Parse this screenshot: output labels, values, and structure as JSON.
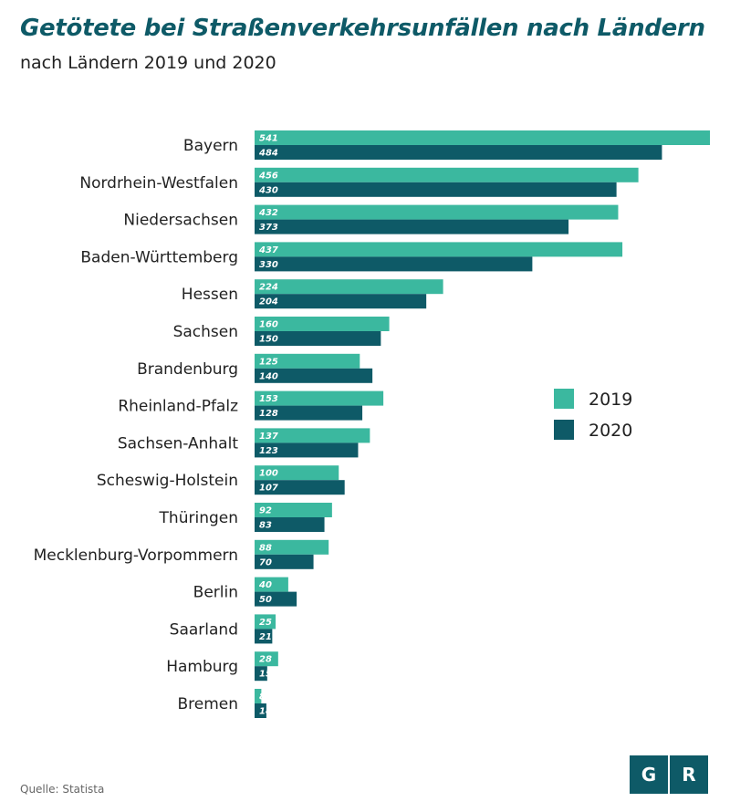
{
  "header": {
    "title": "Getötete bei Straßenverkehrsunfällen nach Ländern",
    "subtitle": "nach Ländern 2019 und 2020"
  },
  "footer": {
    "source": "Quelle: Statista",
    "logo_left": "G",
    "logo_right": "R"
  },
  "colors": {
    "series_2019": "#3bb89f",
    "series_2020": "#0e5a67",
    "logo": "#0e5a67"
  },
  "chart_data": {
    "type": "bar",
    "orientation": "horizontal",
    "title": "Getötete bei Straßenverkehrsunfällen nach Ländern",
    "subtitle": "nach Ländern 2019 und 2020",
    "categories": [
      "Bayern",
      "Nordrhein-Westfalen",
      "Niedersachsen",
      "Baden-Württemberg",
      "Hessen",
      "Sachsen",
      "Brandenburg",
      "Rheinland-Pfalz",
      "Sachsen-Anhalt",
      "Scheswig-Holstein",
      "Thüringen",
      "Mecklenburg-Vorpommern",
      "Berlin",
      "Saarland",
      "Hamburg",
      "Bremen"
    ],
    "series": [
      {
        "name": "2019",
        "color": "#3bb89f",
        "values": [
          541,
          456,
          432,
          437,
          224,
          160,
          125,
          153,
          137,
          100,
          92,
          88,
          40,
          25,
          28,
          8
        ]
      },
      {
        "name": "2020",
        "color": "#0e5a67",
        "values": [
          484,
          430,
          373,
          330,
          204,
          150,
          140,
          128,
          123,
          107,
          83,
          70,
          50,
          21,
          15,
          14
        ]
      }
    ],
    "xlim": [
      0,
      541
    ],
    "grid": false,
    "legend": "right"
  }
}
